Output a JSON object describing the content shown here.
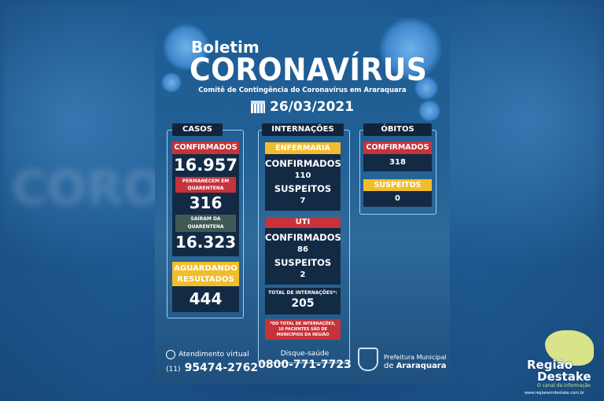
{
  "header": {
    "kicker": "Boletim",
    "title": "CORONAVÍRUS",
    "subtitle": "Comitê de Contingência do Coronavírus em Araraquara",
    "date": "26/03/2021",
    "date_icon": "calendar-icon"
  },
  "casos": {
    "heading": "CASOS",
    "confirmados_label": "CONFIRMADOS",
    "confirmados": "16.957",
    "quarentena_label": "PERMANECEM EM QUARENTENA",
    "quarentena": "316",
    "sairam_label": "SAÍRAM DA QUARENTENA",
    "sairam": "16.323",
    "aguardando_label": "AGUARDANDO RESULTADOS",
    "aguardando": "444"
  },
  "internacoes": {
    "heading": "INTERNAÇÕES",
    "enfermaria_label": "ENFERMARIA",
    "enf_conf_label": "CONFIRMADOS",
    "enf_conf": "110",
    "enf_susp_label": "SUSPEITOS",
    "enf_susp": "7",
    "uti_label": "UTI",
    "uti_conf_label": "CONFIRMADOS",
    "uti_conf": "86",
    "uti_susp_label": "SUSPEITOS",
    "uti_susp": "2",
    "total_label": "TOTAL DE INTERNAÇÕES*:",
    "total": "205",
    "note": "*DO TOTAL DE INTERNAÇÕES, 10 PACIENTES SÃO DE MUNICÍPIOS DA REGIÃO"
  },
  "obitos": {
    "heading": "ÓBITOS",
    "confirmados_label": "CONFIRMADOS",
    "confirmados": "318",
    "suspeitos_label": "SUSPEITOS",
    "suspeitos": "0"
  },
  "footer": {
    "virtual_label": "Atendimento virtual",
    "virtual_prefix": "(11)",
    "virtual_phone": "95474-2762",
    "disque_label": "Disque-saúde",
    "disque_phone": "0800-771-7723",
    "pref_line1": "Prefeitura Municipal",
    "pref_line2_pre": "de",
    "pref_line2": "Araraquara"
  },
  "watermark": {
    "line1": "Região",
    "line2": "Destake",
    "tagline": "O canal da informação",
    "url": "www.regiaoemdestake.com.br"
  },
  "background_ghost_text": "CORONAVÍRUS",
  "colors": {
    "red": "#c6333a",
    "yellow": "#f2bd2c",
    "dark": "#132a45",
    "frame": "#9fd0f0"
  }
}
